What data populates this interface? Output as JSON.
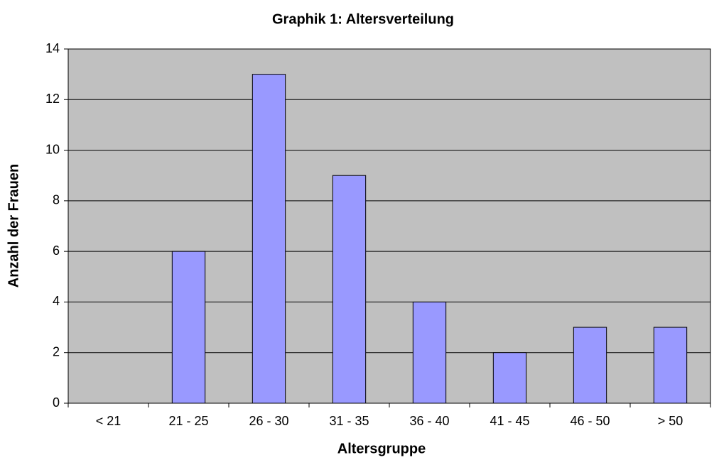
{
  "chart_data": {
    "type": "bar",
    "title": "Graphik 1: Altersverteilung",
    "x_label": "Altersgruppe",
    "y_label": "Anzahl der Frauen",
    "categories": [
      "< 21",
      "21 - 25",
      "26 - 30",
      "31 - 35",
      "36 - 40",
      "41 - 45",
      "46 - 50",
      "> 50"
    ],
    "values": [
      0,
      6,
      13,
      9,
      4,
      2,
      3,
      3
    ],
    "color": "#9999ff",
    "ylim": [
      0,
      14
    ],
    "yticks": [
      0,
      2,
      4,
      6,
      8,
      10,
      12,
      14
    ],
    "grid": true
  }
}
